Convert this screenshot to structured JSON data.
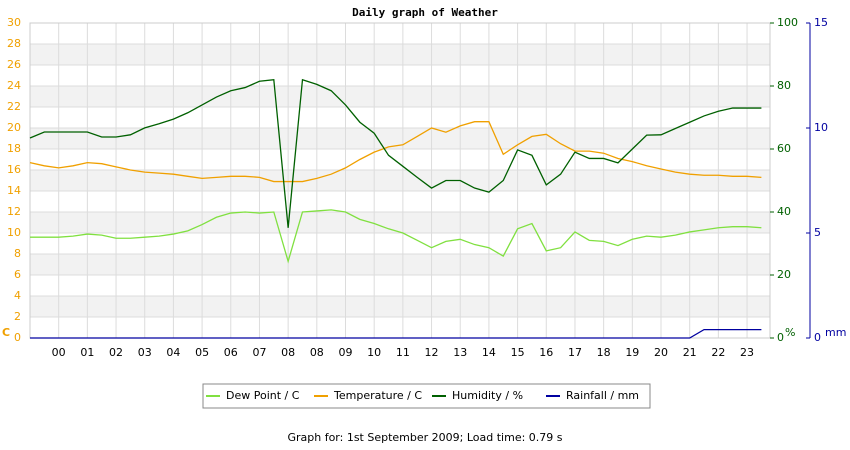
{
  "chart_data": {
    "type": "line",
    "title": "Daily graph of Weather",
    "footer": "Graph for: 1st September 2009; Load time: 0.79 s",
    "categories": [
      null,
      null,
      "00",
      null,
      "01",
      null,
      "02",
      null,
      "03",
      null,
      "04",
      null,
      "05",
      null,
      "06",
      null,
      "07",
      null,
      "08",
      null,
      "08",
      null,
      "09",
      null,
      "10",
      null,
      "11",
      null,
      "12",
      null,
      "13",
      null,
      "14",
      null,
      "15",
      null,
      "16",
      null,
      "17",
      null,
      "18",
      null,
      "19",
      null,
      "20",
      null,
      "21",
      null,
      "22",
      null,
      "23",
      null
    ],
    "series": [
      {
        "name": "Dew Point / C",
        "color": "#80e040",
        "axis": "y",
        "values": [
          9.6,
          9.6,
          9.6,
          9.7,
          9.9,
          9.8,
          9.5,
          9.5,
          9.6,
          9.7,
          9.9,
          10.2,
          10.8,
          11.5,
          11.9,
          12.0,
          11.9,
          12.0,
          7.3,
          12.0,
          12.1,
          12.2,
          12.0,
          11.3,
          10.9,
          10.4,
          10.0,
          9.3,
          8.6,
          9.2,
          9.4,
          8.9,
          8.6,
          7.8,
          10.4,
          10.9,
          8.3,
          8.6,
          10.1,
          9.3,
          9.2,
          8.8,
          9.4,
          9.7,
          9.6,
          9.8,
          10.1,
          10.3,
          10.5,
          10.6,
          10.6,
          10.5
        ]
      },
      {
        "name": "Temperature / C",
        "color": "#f0a000",
        "axis": "y",
        "values": [
          16.7,
          16.4,
          16.2,
          16.4,
          16.7,
          16.6,
          16.3,
          16.0,
          15.8,
          15.7,
          15.6,
          15.4,
          15.2,
          15.3,
          15.4,
          15.4,
          15.3,
          14.9,
          14.9,
          14.9,
          15.2,
          15.6,
          16.2,
          17.0,
          17.7,
          18.2,
          18.4,
          19.2,
          20.0,
          19.6,
          20.2,
          20.6,
          20.6,
          17.5,
          18.4,
          19.2,
          19.4,
          18.5,
          17.8,
          17.8,
          17.6,
          17.1,
          16.8,
          16.4,
          16.1,
          15.8,
          15.6,
          15.5,
          15.5,
          15.4,
          15.4,
          15.3
        ]
      },
      {
        "name": "Humidity / %",
        "color": "#006000",
        "axis": "y2",
        "values": [
          63.5,
          65.4,
          65.4,
          65.4,
          65.4,
          63.8,
          63.8,
          64.5,
          66.7,
          68,
          69.5,
          71.5,
          74,
          76.5,
          78.5,
          79.5,
          81.5,
          82,
          35,
          82,
          80.5,
          78.5,
          74,
          68.5,
          65,
          58,
          54.5,
          51,
          47.6,
          50,
          50,
          47.6,
          46.3,
          50,
          59.7,
          58,
          48.6,
          52,
          59,
          57,
          57,
          55.6,
          60,
          64.4,
          64.5,
          66.5,
          68.5,
          70.5,
          72,
          73,
          73,
          73
        ]
      },
      {
        "name": "Rainfall / mm",
        "color": "#0000a0",
        "axis": "y3",
        "values": [
          0,
          0,
          0,
          0,
          0,
          0,
          0,
          0,
          0,
          0,
          0,
          0,
          0,
          0,
          0,
          0,
          0,
          0,
          0,
          0,
          0,
          0,
          0,
          0,
          0,
          0,
          0,
          0,
          0,
          0,
          0,
          0,
          0,
          0,
          0,
          0,
          0,
          0,
          0,
          0,
          0,
          0,
          0,
          0,
          0,
          0,
          0,
          0.4,
          0.4,
          0.4,
          0.4,
          0.4
        ]
      }
    ],
    "ylim": [
      0,
      30
    ],
    "yticks": [
      0,
      2,
      4,
      6,
      8,
      10,
      12,
      14,
      16,
      18,
      20,
      22,
      24,
      26,
      28,
      30
    ],
    "y_unit": "C",
    "y_color": "#f0a000",
    "y2lim": [
      0,
      100
    ],
    "y2ticks": [
      0,
      20,
      40,
      60,
      80,
      100
    ],
    "y2_unit": "%",
    "y2_color": "#006000",
    "y3lim": [
      0,
      15
    ],
    "y3ticks": [
      0,
      5,
      10,
      15
    ],
    "y3_unit": "mm",
    "y3_color": "#0000a0",
    "grid": true
  }
}
